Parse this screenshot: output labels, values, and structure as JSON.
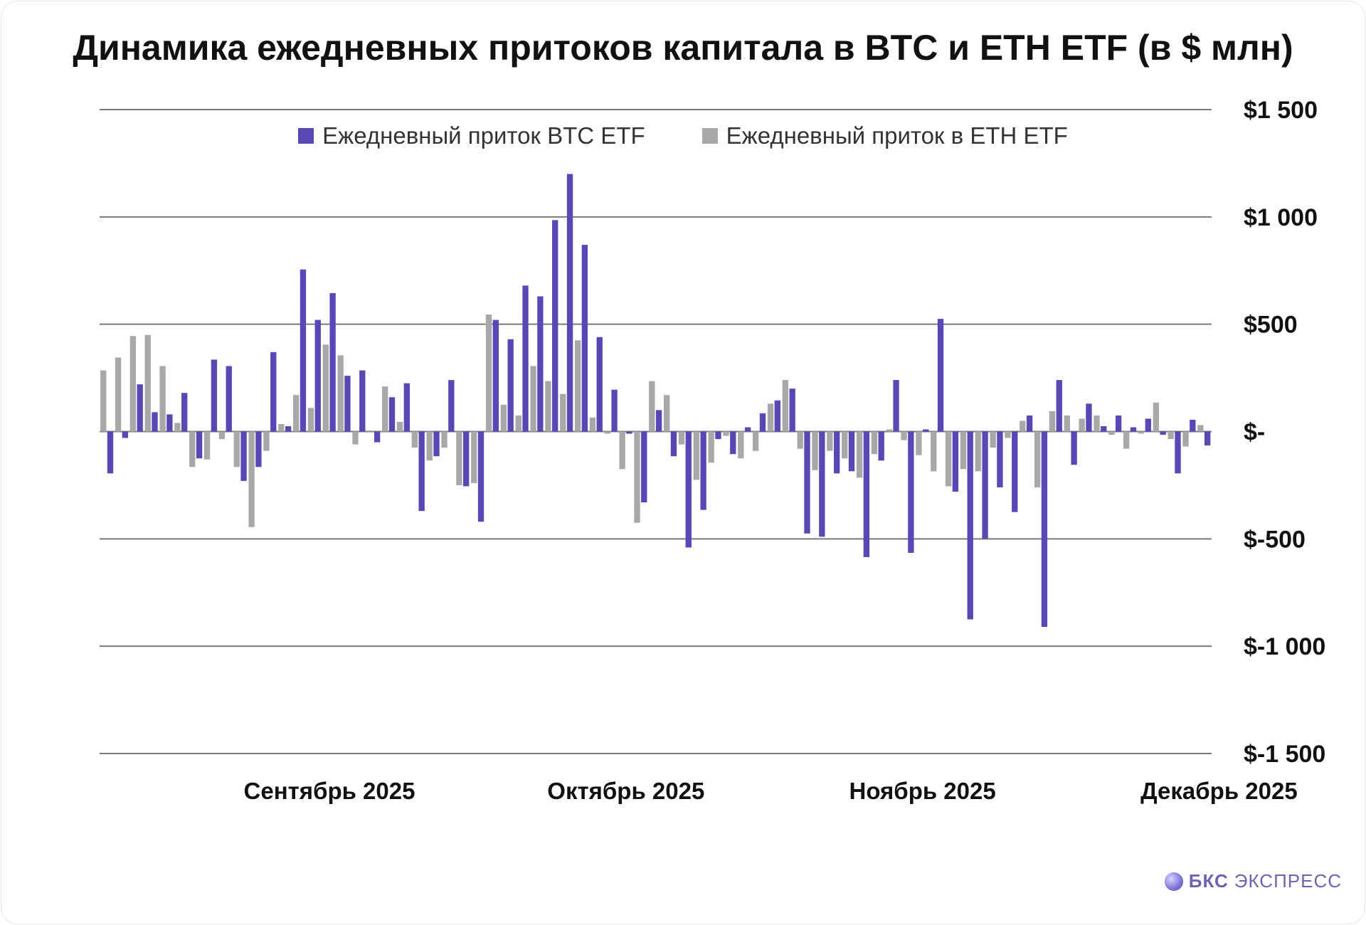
{
  "title": "Динамика ежедневных притоков капитала в BTC и ETH ETF (в $ млн)",
  "brand": {
    "logo": "bks-express-logo-icon",
    "name": "БКС",
    "suffix": "ЭКСПРЕСС"
  },
  "colors": {
    "btc": "#5a47b6",
    "eth": "#a8a8a8",
    "grid": "#7a7a7a"
  },
  "chart_data": {
    "type": "bar",
    "title": "Динамика ежедневных притоков капитала в BTC и ETH ETF (в $ млн)",
    "xlabel": "",
    "ylabel": "",
    "ylim": [
      -1500,
      1500
    ],
    "grid": true,
    "legend_position": "top",
    "y_ticks": [
      {
        "value": 1500,
        "label": "$1 500"
      },
      {
        "value": 1000,
        "label": "$1 000"
      },
      {
        "value": 500,
        "label": "$500"
      },
      {
        "value": 0,
        "label": "$-"
      },
      {
        "value": -500,
        "label": "$-500"
      },
      {
        "value": -1000,
        "label": "$-1 000"
      },
      {
        "value": -1500,
        "label": "$-1 500"
      }
    ],
    "x_ticks": [
      {
        "index": 15,
        "label": "Сентябрь 2025"
      },
      {
        "index": 35,
        "label": "Октябрь 2025"
      },
      {
        "index": 55,
        "label": "Ноябрь 2025"
      },
      {
        "index": 75,
        "label": "Декабрь 2025"
      }
    ],
    "series": [
      {
        "name": "Ежедневный приток BTC ETF",
        "values": [
          -195,
          -30,
          220,
          90,
          80,
          180,
          -125,
          335,
          305,
          -230,
          -165,
          370,
          25,
          755,
          520,
          645,
          260,
          285,
          -50,
          160,
          225,
          -370,
          -115,
          240,
          -255,
          -420,
          520,
          430,
          680,
          630,
          985,
          1200,
          870,
          440,
          195,
          -10,
          -330,
          100,
          -115,
          -540,
          -365,
          -35,
          -105,
          20,
          85,
          145,
          200,
          -475,
          -490,
          -195,
          -185,
          -585,
          -135,
          240,
          -565,
          10,
          525,
          -280,
          -875,
          -500,
          -260,
          -375,
          75,
          -910,
          240,
          -155,
          130,
          25,
          75,
          20,
          60,
          -15,
          -195,
          55,
          -65
        ],
        "color": "#5a47b6"
      },
      {
        "name": "Ежедневный приток в ETH ETF",
        "values": [
          285,
          345,
          445,
          450,
          305,
          40,
          -165,
          -130,
          -35,
          -165,
          -445,
          -90,
          35,
          170,
          110,
          405,
          355,
          -60,
          5,
          210,
          45,
          -75,
          -135,
          -75,
          -250,
          -240,
          545,
          125,
          75,
          305,
          235,
          175,
          425,
          65,
          -10,
          -175,
          -425,
          235,
          170,
          -60,
          -225,
          -145,
          -20,
          -125,
          -90,
          130,
          240,
          -80,
          -180,
          -90,
          -125,
          -215,
          -105,
          10,
          -40,
          -110,
          -185,
          -255,
          -175,
          -185,
          -75,
          -30,
          50,
          -260,
          95,
          75,
          60,
          75,
          -15,
          -80,
          -10,
          135,
          -35,
          -70,
          30
        ],
        "color": "#a8a8a8"
      }
    ]
  }
}
